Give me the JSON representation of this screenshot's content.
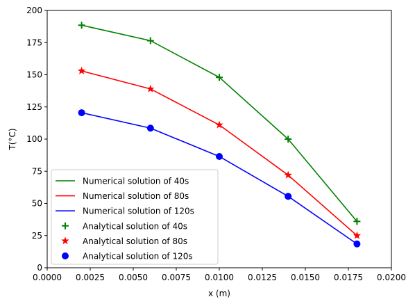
{
  "chart_data": {
    "type": "line",
    "title": "",
    "xlabel": "x (m)",
    "ylabel": "T(°C)",
    "xlim": [
      0.0,
      0.02
    ],
    "ylim": [
      0,
      200
    ],
    "x": [
      0.002,
      0.006,
      0.01,
      0.014,
      0.018
    ],
    "xticks": [
      {
        "value": 0.0,
        "label": "0.0000"
      },
      {
        "value": 0.0025,
        "label": "0.0025"
      },
      {
        "value": 0.005,
        "label": "0.0050"
      },
      {
        "value": 0.0075,
        "label": "0.0075"
      },
      {
        "value": 0.01,
        "label": "0.0100"
      },
      {
        "value": 0.0125,
        "label": "0.0125"
      },
      {
        "value": 0.015,
        "label": "0.0150"
      },
      {
        "value": 0.0175,
        "label": "0.0175"
      },
      {
        "value": 0.02,
        "label": "0.0200"
      }
    ],
    "yticks": [
      {
        "value": 0,
        "label": "0"
      },
      {
        "value": 25,
        "label": "25"
      },
      {
        "value": 50,
        "label": "50"
      },
      {
        "value": 75,
        "label": "75"
      },
      {
        "value": 100,
        "label": "100"
      },
      {
        "value": 125,
        "label": "125"
      },
      {
        "value": 150,
        "label": "150"
      },
      {
        "value": 175,
        "label": "175"
      },
      {
        "value": 200,
        "label": "200"
      }
    ],
    "grid": false,
    "legend_position": "lower-left",
    "series": [
      {
        "name": "Numerical solution of 40s",
        "kind": "line",
        "color": "#008000",
        "values": [
          188.5,
          176.5,
          148,
          100,
          36
        ]
      },
      {
        "name": "Numerical solution of 80s",
        "kind": "line",
        "color": "#ff0000",
        "values": [
          153,
          139,
          111,
          72,
          25
        ]
      },
      {
        "name": "Numerical solution of 120s",
        "kind": "line",
        "color": "#0000ff",
        "values": [
          120.5,
          108.5,
          86.5,
          55.5,
          18.5
        ]
      },
      {
        "name": "Analytical solution of 40s",
        "kind": "scatter",
        "marker": "plus",
        "color": "#008000",
        "values": [
          188.5,
          176.5,
          148,
          100,
          36
        ]
      },
      {
        "name": "Analytical solution of 80s",
        "kind": "scatter",
        "marker": "star",
        "color": "#ff0000",
        "values": [
          153,
          139,
          111,
          72,
          25
        ]
      },
      {
        "name": "Analytical solution of 120s",
        "kind": "scatter",
        "marker": "circle",
        "color": "#0000ff",
        "values": [
          120.5,
          108.5,
          86.5,
          55.5,
          18.5
        ]
      }
    ]
  }
}
